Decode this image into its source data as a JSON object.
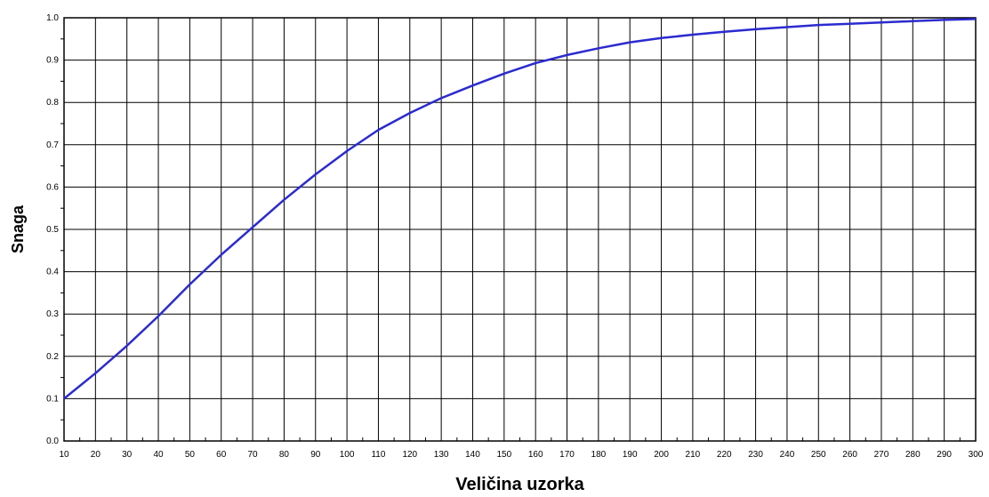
{
  "chart_data": {
    "type": "line",
    "title": "",
    "xlabel": "Veličina uzorka",
    "ylabel": "Snaga",
    "xlim": [
      10,
      300
    ],
    "ylim": [
      0.0,
      1.0
    ],
    "grid": true,
    "x_ticks": [
      10,
      20,
      30,
      40,
      50,
      60,
      70,
      80,
      90,
      100,
      110,
      120,
      130,
      140,
      150,
      160,
      170,
      180,
      190,
      200,
      210,
      220,
      230,
      240,
      250,
      260,
      270,
      280,
      290,
      300
    ],
    "y_ticks": [
      0.0,
      0.1,
      0.2,
      0.3,
      0.4,
      0.5,
      0.6,
      0.7,
      0.8,
      0.9,
      1.0
    ],
    "y_tick_labels": [
      "0.0",
      "0.1",
      "0.2",
      "0.3",
      "0.4",
      "0.5",
      "0.6",
      "0.7",
      "0.8",
      "0.9",
      "1.0"
    ],
    "series": [
      {
        "color": "#2b2bd0",
        "x": [
          10,
          20,
          30,
          40,
          50,
          60,
          70,
          80,
          90,
          100,
          110,
          120,
          130,
          140,
          150,
          160,
          170,
          180,
          190,
          200,
          210,
          220,
          230,
          240,
          250,
          260,
          270,
          280,
          290,
          300
        ],
        "y": [
          0.1,
          0.16,
          0.225,
          0.295,
          0.37,
          0.44,
          0.505,
          0.57,
          0.63,
          0.685,
          0.735,
          0.775,
          0.81,
          0.84,
          0.868,
          0.893,
          0.912,
          0.928,
          0.942,
          0.952,
          0.96,
          0.967,
          0.973,
          0.978,
          0.983,
          0.986,
          0.989,
          0.992,
          0.995,
          0.997
        ]
      }
    ]
  }
}
